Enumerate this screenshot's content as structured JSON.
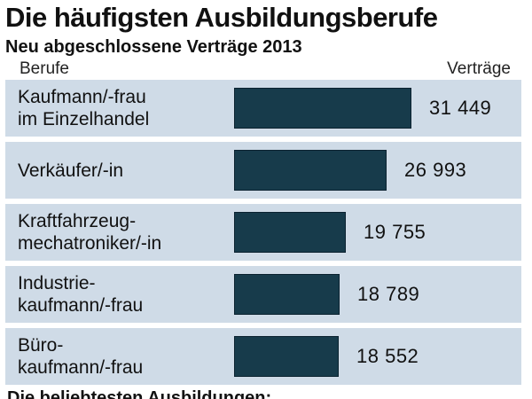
{
  "chart_data": {
    "type": "bar",
    "orientation": "horizontal",
    "title": "Die häufigsten Ausbildungsberufe",
    "subtitle": "Neu abgeschlossene Verträge 2013",
    "category_header": "Berufe",
    "value_header": "Verträge",
    "categories": [
      [
        "Kaufmann/-frau",
        "im Einzelhandel"
      ],
      [
        "Verkäufer/-in"
      ],
      [
        "Kraftfahrzeug-",
        "mechatroniker/-in"
      ],
      [
        "Industrie-",
        "kaufmann/-frau"
      ],
      [
        "Büro-",
        "kaufmann/-frau"
      ]
    ],
    "values": [
      31449,
      26993,
      19755,
      18789,
      18552
    ],
    "value_labels": [
      "31 449",
      "26 993",
      "19 755",
      "18 789",
      "18 552"
    ],
    "xlim": [
      0,
      31449
    ],
    "bar_color": "#173b4b",
    "row_background": "#cfdbe7",
    "grid": false,
    "legend": "none"
  },
  "footer": {
    "text": "Die beliebtesten Ausbildungen:"
  }
}
